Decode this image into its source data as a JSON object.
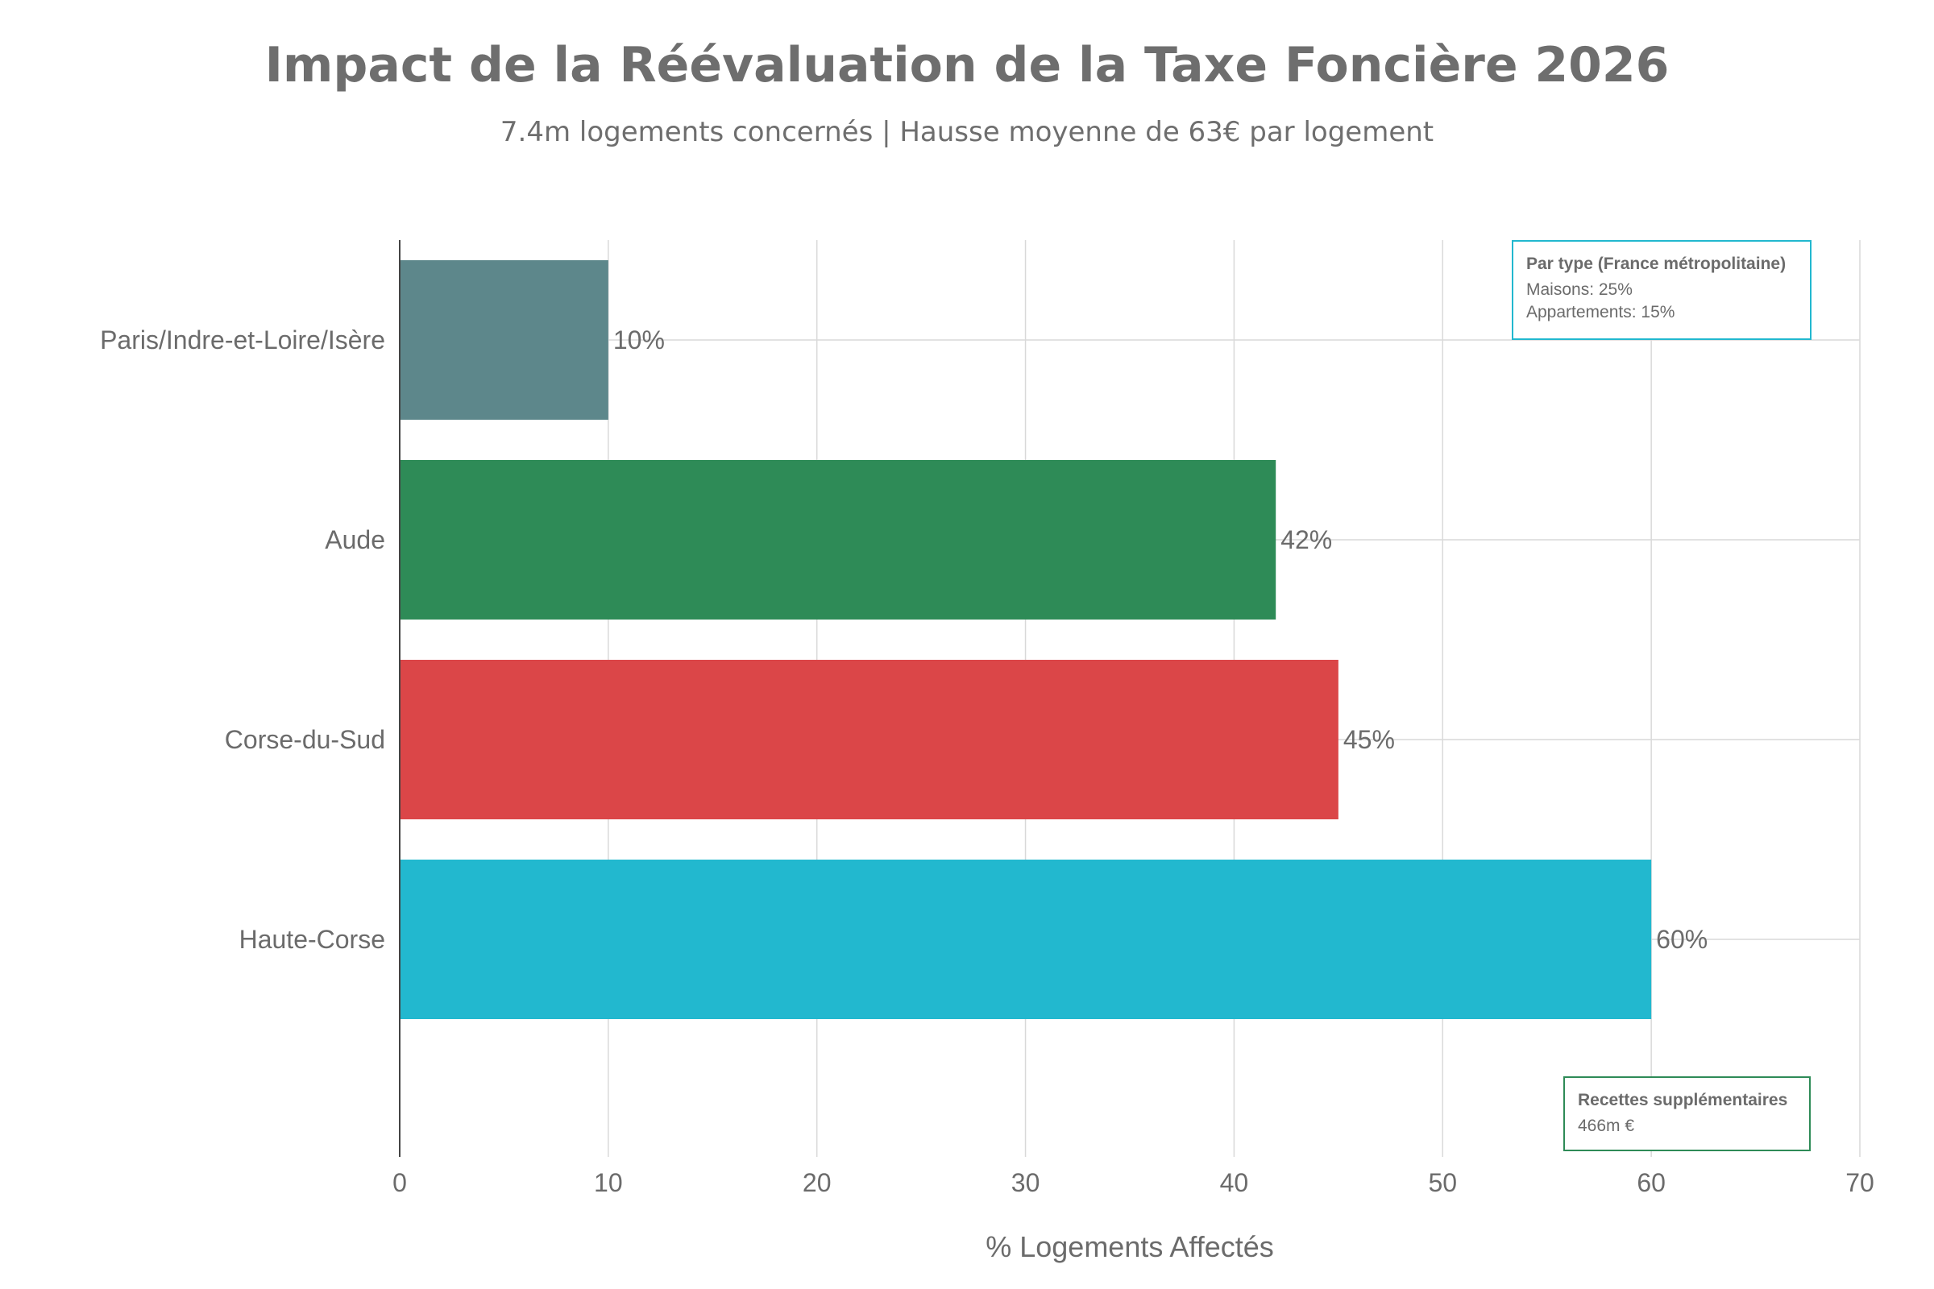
{
  "title": "Impact de la Réévaluation de la Taxe Foncière 2026",
  "subtitle": "7.4m logements concernés | Hausse moyenne de 63€ par logement",
  "chart_data": {
    "type": "bar",
    "orientation": "horizontal",
    "categories": [
      "Paris/Indre-et-Loire/Isère",
      "Aude",
      "Corse-du-Sud",
      "Haute-Corse"
    ],
    "values": [
      10,
      42,
      45,
      60
    ],
    "data_labels": [
      "10%",
      "42%",
      "45%",
      "60%"
    ],
    "colors": [
      "#5d878b",
      "#2e8b57",
      "#db4648",
      "#22b8cf"
    ],
    "xlabel": "% Logements Affectés",
    "ylabel": "",
    "xlim": [
      0,
      70
    ],
    "xticks": [
      0,
      10,
      20,
      30,
      40,
      50,
      60,
      70
    ],
    "grid": true,
    "legend": "none"
  },
  "annotations": {
    "type_box": {
      "heading": "Par type (France métropolitaine)",
      "lines": [
        "Maisons: 25%",
        "Appartements: 15%"
      ],
      "border_color": "#22b8cf"
    },
    "revenue_box": {
      "heading": "Recettes supplémentaires",
      "lines": [
        "466m €"
      ],
      "border_color": "#2e8b57"
    }
  }
}
